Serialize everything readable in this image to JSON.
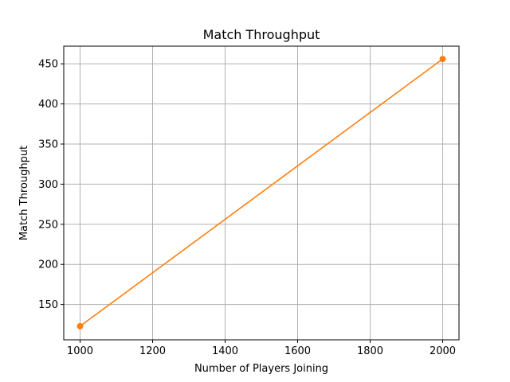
{
  "chart_data": {
    "type": "line",
    "title": "Match Throughput",
    "xlabel": "Number of Players Joining",
    "ylabel": "Match Throughput",
    "xlim": [
      955,
      2045
    ],
    "ylim": [
      106,
      472
    ],
    "xticks": [
      1000,
      1200,
      1400,
      1600,
      1800,
      2000
    ],
    "yticks": [
      150,
      200,
      250,
      300,
      350,
      400,
      450
    ],
    "grid": true,
    "series": [
      {
        "color": "#ff7f0e",
        "marker": "circle",
        "x": [
          1000,
          2000
        ],
        "y": [
          123,
          456
        ]
      }
    ]
  }
}
